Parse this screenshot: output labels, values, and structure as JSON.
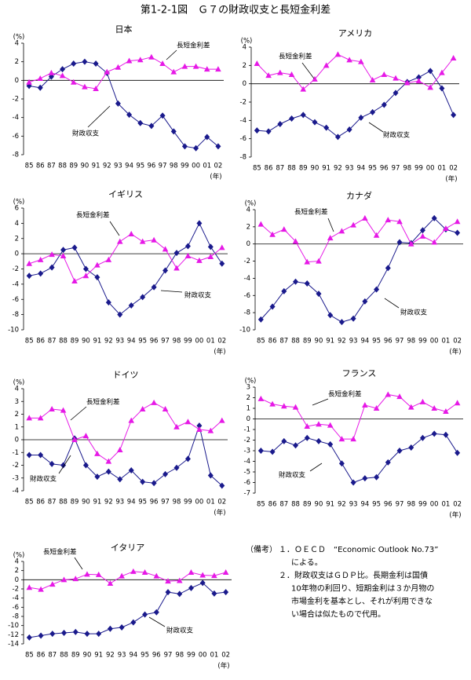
{
  "title": "第1-2-1図　Ｇ７の財政収支と長短金利差",
  "chart_data": [
    {
      "type": "line",
      "title": "日本",
      "y_label": "(%)",
      "x_label": "(年)",
      "categories": [
        "85",
        "86",
        "87",
        "88",
        "89",
        "90",
        "91",
        "92",
        "93",
        "94",
        "95",
        "96",
        "97",
        "98",
        "99",
        "00",
        "01",
        "02"
      ],
      "ylim": [
        -8,
        4
      ],
      "yticks": [
        -8,
        -6,
        -4,
        -2,
        0,
        2,
        4
      ],
      "series": [
        {
          "name": "財政収支",
          "color": "#1a1a8c",
          "marker": "diamond",
          "values": [
            -0.6,
            -0.8,
            0.4,
            1.2,
            1.8,
            2.0,
            1.8,
            0.8,
            -2.5,
            -3.7,
            -4.6,
            -4.9,
            -3.8,
            -5.5,
            -7.1,
            -7.3,
            -6.1,
            -7.1
          ]
        },
        {
          "name": "長短金利差",
          "color": "#e619e6",
          "marker": "triangle",
          "values": [
            -0.2,
            0.2,
            0.8,
            0.5,
            -0.2,
            -0.7,
            -0.9,
            0.9,
            1.4,
            2.1,
            2.2,
            2.5,
            1.8,
            0.9,
            1.5,
            1.5,
            1.2,
            1.2
          ]
        }
      ]
    },
    {
      "type": "line",
      "title": "アメリカ",
      "y_label": "(%)",
      "x_label": "(年)",
      "categories": [
        "85",
        "86",
        "87",
        "88",
        "89",
        "90",
        "91",
        "92",
        "93",
        "94",
        "95",
        "96",
        "97",
        "98",
        "99",
        "00",
        "01",
        "02"
      ],
      "ylim": [
        -8,
        4
      ],
      "yticks": [
        -8,
        -6,
        -4,
        -2,
        0,
        2,
        4
      ],
      "series": [
        {
          "name": "財政収支",
          "color": "#1a1a8c",
          "marker": "diamond",
          "values": [
            -5.1,
            -5.2,
            -4.4,
            -3.8,
            -3.4,
            -4.2,
            -4.8,
            -5.8,
            -5.0,
            -3.7,
            -3.1,
            -2.3,
            -1.0,
            0.2,
            0.7,
            1.4,
            -0.5,
            -3.4
          ]
        },
        {
          "name": "長短金利差",
          "color": "#e619e6",
          "marker": "triangle",
          "values": [
            2.2,
            0.9,
            1.2,
            1.0,
            -0.6,
            0.5,
            2.0,
            3.2,
            2.6,
            2.4,
            0.4,
            1.0,
            0.6,
            0.1,
            0.3,
            -0.4,
            1.2,
            2.8
          ]
        }
      ]
    },
    {
      "type": "line",
      "title": "イギリス",
      "y_label": "(%)",
      "x_label": "(年)",
      "categories": [
        "85",
        "86",
        "87",
        "88",
        "89",
        "90",
        "91",
        "92",
        "93",
        "94",
        "95",
        "96",
        "97",
        "98",
        "99",
        "00",
        "01",
        "02"
      ],
      "ylim": [
        -10,
        6
      ],
      "yticks": [
        -10,
        -8,
        -6,
        -4,
        -2,
        0,
        2,
        4,
        6
      ],
      "series": [
        {
          "name": "財政収支",
          "color": "#1a1a8c",
          "marker": "diamond",
          "values": [
            -2.9,
            -2.6,
            -1.8,
            0.5,
            0.8,
            -2.0,
            -3.1,
            -6.4,
            -8.0,
            -6.8,
            -5.7,
            -4.4,
            -2.2,
            0.1,
            1.0,
            4.0,
            0.9,
            -1.3
          ]
        },
        {
          "name": "長短金利差",
          "color": "#e619e6",
          "marker": "triangle",
          "values": [
            -1.3,
            -0.8,
            -0.1,
            -0.3,
            -3.6,
            -2.9,
            -1.5,
            -0.8,
            1.6,
            2.6,
            1.6,
            1.8,
            0.6,
            -1.9,
            -0.3,
            -0.9,
            -0.4,
            0.8
          ]
        }
      ]
    },
    {
      "type": "line",
      "title": "カナダ",
      "y_label": "(%)",
      "x_label": "(年)",
      "categories": [
        "85",
        "86",
        "87",
        "88",
        "89",
        "90",
        "91",
        "92",
        "93",
        "94",
        "95",
        "96",
        "97",
        "98",
        "99",
        "00",
        "01",
        "02"
      ],
      "ylim": [
        -10,
        4
      ],
      "yticks": [
        -10,
        -8,
        -6,
        -4,
        -2,
        0,
        2,
        4
      ],
      "series": [
        {
          "name": "財政収支",
          "color": "#1a1a8c",
          "marker": "diamond",
          "values": [
            -8.8,
            -7.3,
            -5.5,
            -4.4,
            -4.6,
            -5.8,
            -8.3,
            -9.1,
            -8.7,
            -6.7,
            -5.3,
            -2.8,
            0.2,
            0.1,
            1.6,
            3.0,
            1.7,
            1.3
          ]
        },
        {
          "name": "長短金利差",
          "color": "#e619e6",
          "marker": "triangle",
          "values": [
            2.3,
            1.1,
            1.7,
            0.3,
            -2.1,
            -2.0,
            0.7,
            1.5,
            2.2,
            3.0,
            1.0,
            2.8,
            2.6,
            0.0,
            0.9,
            0.2,
            1.8,
            2.6
          ]
        }
      ]
    },
    {
      "type": "line",
      "title": "ドイツ",
      "y_label": "(%)",
      "x_label": "(年)",
      "categories": [
        "85",
        "86",
        "87",
        "88",
        "89",
        "90",
        "91",
        "92",
        "93",
        "94",
        "95",
        "96",
        "97",
        "98",
        "99",
        "00",
        "01",
        "02"
      ],
      "ylim": [
        -4,
        4
      ],
      "yticks": [
        -4,
        -3,
        -2,
        -1,
        0,
        1,
        2,
        3,
        4
      ],
      "series": [
        {
          "name": "財政収支",
          "color": "#1a1a8c",
          "marker": "diamond",
          "values": [
            -1.2,
            -1.2,
            -1.9,
            -2.0,
            0.1,
            -2.0,
            -2.9,
            -2.5,
            -3.1,
            -2.4,
            -3.3,
            -3.4,
            -2.7,
            -2.2,
            -1.5,
            1.1,
            -2.8,
            -3.6
          ]
        },
        {
          "name": "長短金利差",
          "color": "#e619e6",
          "marker": "triangle",
          "values": [
            1.7,
            1.7,
            2.4,
            2.3,
            0.0,
            0.3,
            -1.1,
            -1.7,
            -0.8,
            1.5,
            2.4,
            2.9,
            2.4,
            1.0,
            1.4,
            0.8,
            0.7,
            1.5
          ]
        }
      ]
    },
    {
      "type": "line",
      "title": "フランス",
      "y_label": "(%)",
      "x_label": "(年)",
      "categories": [
        "85",
        "86",
        "87",
        "88",
        "89",
        "90",
        "91",
        "92",
        "93",
        "94",
        "95",
        "96",
        "97",
        "98",
        "99",
        "00",
        "01",
        "02"
      ],
      "ylim": [
        -7,
        3
      ],
      "yticks": [
        -7,
        -6,
        -5,
        -4,
        -3,
        -2,
        -1,
        0,
        1,
        2,
        3
      ],
      "series": [
        {
          "name": "財政収支",
          "color": "#1a1a8c",
          "marker": "diamond",
          "values": [
            -3.0,
            -3.1,
            -2.1,
            -2.5,
            -1.8,
            -2.1,
            -2.4,
            -4.2,
            -6.0,
            -5.6,
            -5.5,
            -4.1,
            -3.0,
            -2.7,
            -1.8,
            -1.4,
            -1.5,
            -3.2
          ]
        },
        {
          "name": "長短金利差",
          "color": "#e619e6",
          "marker": "triangle",
          "values": [
            1.9,
            1.4,
            1.2,
            1.1,
            -0.7,
            -0.5,
            -0.6,
            -1.9,
            -1.9,
            1.3,
            1.0,
            2.3,
            2.1,
            1.1,
            1.6,
            1.0,
            0.7,
            1.5
          ]
        }
      ]
    },
    {
      "type": "line",
      "title": "イタリア",
      "y_label": "(%)",
      "x_label": "(年)",
      "categories": [
        "85",
        "86",
        "87",
        "88",
        "89",
        "90",
        "91",
        "92",
        "93",
        "94",
        "95",
        "96",
        "97",
        "98",
        "99",
        "00",
        "01",
        "02"
      ],
      "ylim": [
        -14,
        4
      ],
      "yticks": [
        -14,
        -12,
        -10,
        -8,
        -6,
        -4,
        -2,
        0,
        2,
        4
      ],
      "series": [
        {
          "name": "財政収支",
          "color": "#1a1a8c",
          "marker": "diamond",
          "values": [
            -12.6,
            -12.2,
            -11.8,
            -11.6,
            -11.4,
            -11.8,
            -11.8,
            -10.7,
            -10.4,
            -9.3,
            -7.6,
            -7.1,
            -2.7,
            -3.1,
            -1.8,
            -0.7,
            -3.0,
            -2.7
          ]
        },
        {
          "name": "長短金利差",
          "color": "#e619e6",
          "marker": "triangle",
          "values": [
            -1.7,
            -2.1,
            -1.0,
            0.0,
            0.2,
            1.2,
            1.1,
            -0.8,
            0.8,
            1.8,
            1.6,
            0.8,
            -0.3,
            -0.2,
            1.6,
            1.0,
            0.9,
            1.6
          ]
        }
      ]
    }
  ],
  "notes": {
    "heading": "（備考）",
    "lines": [
      "１．ＯＥＣＤ　“Economic Outlook No.73”",
      "による。",
      "２．財政収支はＧＤＰ比。長期金利は国債",
      "10年物の利回り、短期金利は３か月物の",
      "市場金利を基本とし、それが利用できな",
      "い場合は似たもので代用。"
    ]
  }
}
